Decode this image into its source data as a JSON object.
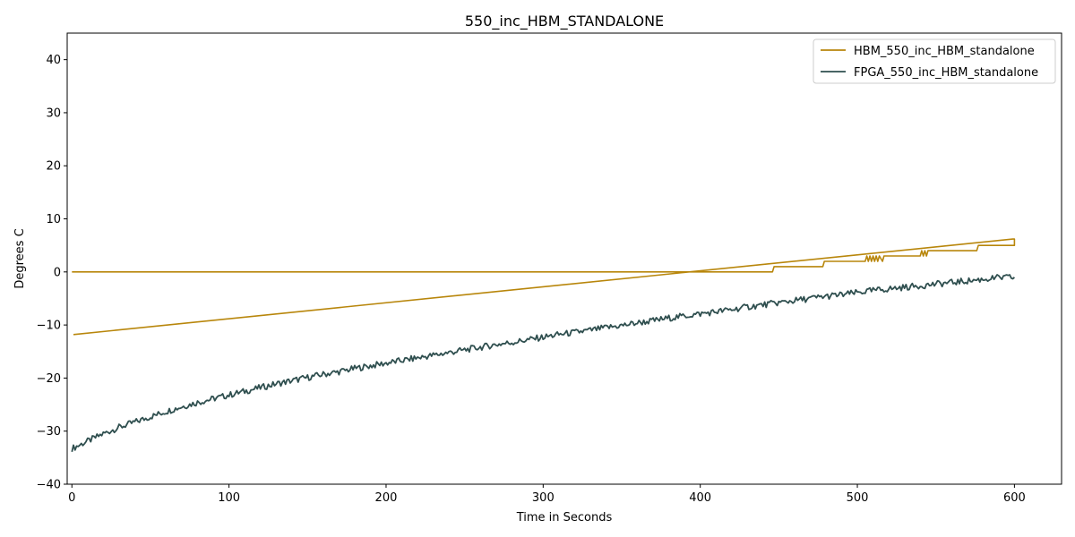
{
  "chart_data": {
    "type": "line",
    "title": "550_inc_HBM_STANDALONE",
    "xlabel": "Time in Seconds",
    "ylabel": "Degrees C",
    "xlim": [
      -3,
      630
    ],
    "ylim": [
      -40,
      45
    ],
    "xticks": [
      0,
      100,
      200,
      300,
      400,
      500,
      600
    ],
    "yticks": [
      -40,
      -30,
      -20,
      -10,
      0,
      10,
      20,
      30,
      40
    ],
    "grid": false,
    "legend_position": "top-right",
    "series": [
      {
        "name": "HBM_550_inc_HBM_standalone",
        "color": "#b8860b",
        "x": [
          0,
          446,
          447,
          478,
          479,
          505,
          506,
          507,
          508,
          509,
          510,
          511,
          512,
          513,
          514,
          516,
          517,
          518,
          540,
          541,
          542,
          543,
          544,
          545,
          546,
          576,
          577,
          600,
          600,
          599,
          1
        ],
        "y": [
          0,
          0,
          1,
          1,
          2,
          2,
          3,
          2,
          3,
          2,
          3,
          2,
          3,
          2,
          3,
          2,
          3,
          3,
          3,
          4,
          3,
          4,
          3,
          4,
          4,
          4,
          5,
          5,
          6.2,
          6.2,
          -11.8
        ]
      },
      {
        "name": "FPGA_550_inc_HBM_standalone",
        "color": "#2f4f4f",
        "x": [
          0,
          10,
          20,
          30,
          40,
          50,
          60,
          70,
          80,
          90,
          100,
          110,
          120,
          130,
          140,
          150,
          160,
          170,
          180,
          190,
          200,
          210,
          220,
          230,
          240,
          250,
          260,
          270,
          280,
          290,
          300,
          310,
          320,
          330,
          340,
          350,
          360,
          370,
          380,
          390,
          400,
          410,
          420,
          430,
          440,
          450,
          460,
          470,
          480,
          490,
          500,
          510,
          520,
          530,
          540,
          550,
          560,
          570,
          580,
          590,
          600
        ],
        "y": [
          -33.3,
          -31.9,
          -30.5,
          -29.3,
          -28.3,
          -27.3,
          -26.3,
          -25.4,
          -24.6,
          -23.9,
          -23.2,
          -22.5,
          -21.8,
          -21.1,
          -20.5,
          -19.9,
          -19.3,
          -18.8,
          -18.2,
          -17.7,
          -17.2,
          -16.7,
          -16.2,
          -15.7,
          -15.2,
          -14.7,
          -14.2,
          -13.7,
          -13.3,
          -12.8,
          -12.3,
          -11.8,
          -11.4,
          -11.0,
          -10.5,
          -10.1,
          -9.6,
          -9.2,
          -8.7,
          -8.3,
          -7.9,
          -7.5,
          -7.1,
          -6.6,
          -6.2,
          -5.8,
          -5.4,
          -5.0,
          -4.6,
          -4.3,
          -3.9,
          -3.5,
          -3.2,
          -2.9,
          -2.6,
          -2.3,
          -2.0,
          -1.7,
          -1.4,
          -1.1,
          -1.0
        ]
      }
    ]
  }
}
